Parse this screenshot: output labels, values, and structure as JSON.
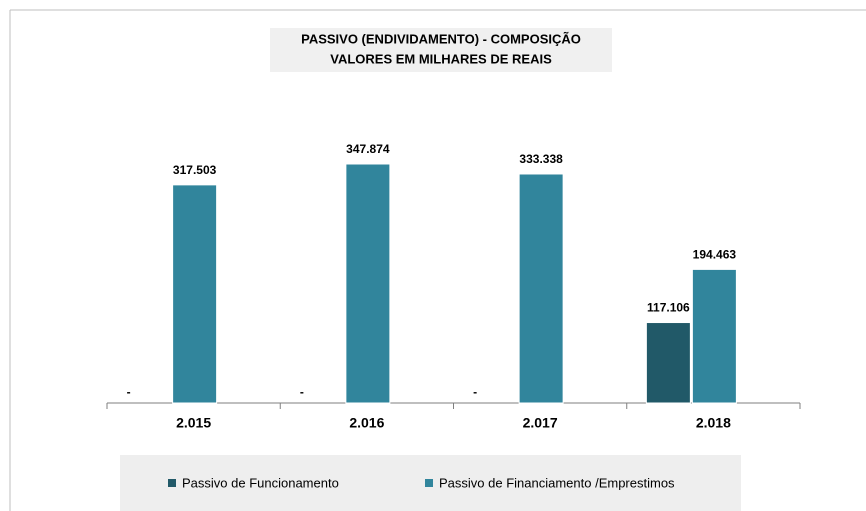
{
  "chart_data": {
    "type": "bar",
    "title": "PASSIVO (ENDIVIDAMENTO) - COMPOSIÇÃO",
    "subtitle": "VALORES EM MILHARES DE REAIS",
    "categories": [
      "2.015",
      "2.016",
      "2.017",
      "2.018"
    ],
    "series": [
      {
        "name": "Passivo de Funcionamento",
        "color": "#215968",
        "values": [
          0,
          0,
          0,
          117106
        ],
        "value_labels": [
          "-",
          "-",
          "-",
          "117.106"
        ]
      },
      {
        "name": "Passivo de Financiamento /Emprestimos",
        "color": "#31859c",
        "values": [
          317503,
          347874,
          333338,
          194463
        ],
        "value_labels": [
          "317.503",
          "347.874",
          "333.338",
          "194.463"
        ]
      }
    ]
  }
}
